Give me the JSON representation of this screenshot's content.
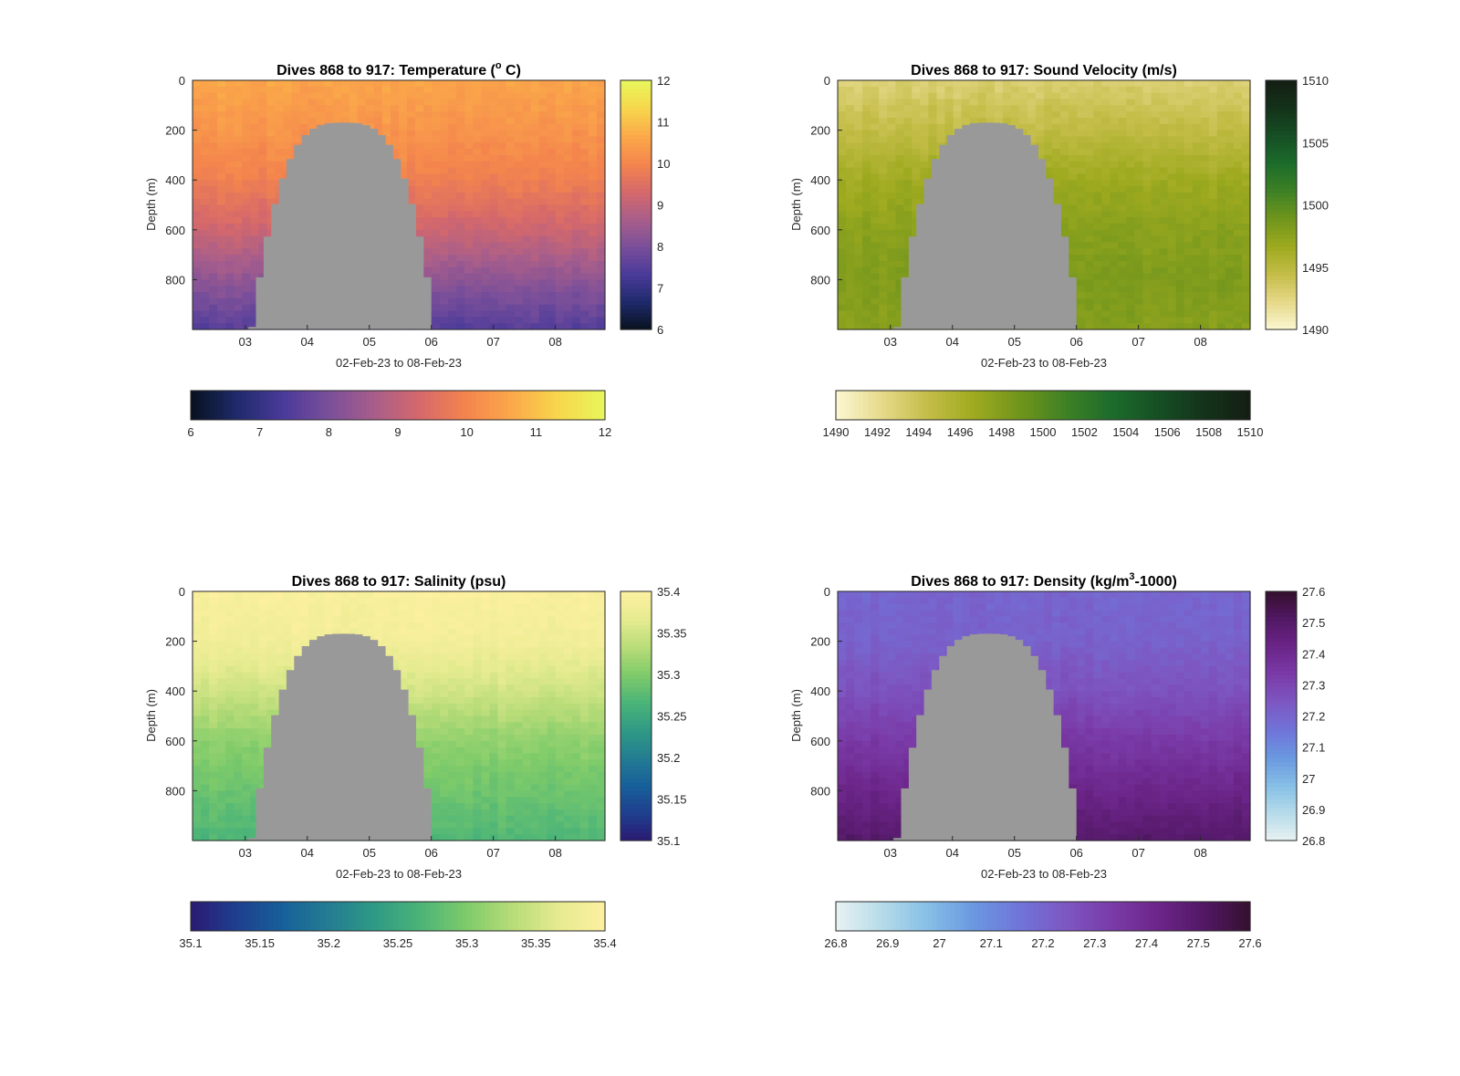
{
  "figure": {
    "background": "#ffffff"
  },
  "chart_data": [
    {
      "id": "temp",
      "type": "heatmap",
      "title_main": "Dives 868 to 917: Temperature (",
      "title_sup": "o",
      "title_tail": " C)",
      "xlabel": "02-Feb-23 to 08-Feb-23",
      "ylabel": "Depth (m)",
      "xticklabels": [
        "03",
        "04",
        "05",
        "06",
        "07",
        "08"
      ],
      "yticklabels": [
        "0",
        "200",
        "400",
        "600",
        "800"
      ],
      "yticks": [
        0,
        200,
        400,
        600,
        800
      ],
      "ylim": [
        0,
        1000
      ],
      "xlim_days": [
        2.15,
        8.8
      ],
      "xticks_days": [
        3,
        4,
        5,
        6,
        7,
        8
      ],
      "clim": [
        6,
        12
      ],
      "vcb_ticklabels": [
        "6",
        "7",
        "8",
        "9",
        "10",
        "11",
        "12"
      ],
      "hcb_ticklabels": [
        "6",
        "7",
        "8",
        "9",
        "10",
        "11",
        "12"
      ],
      "colormap": [
        "#07111e",
        "#1f2a6b",
        "#4a3a9a",
        "#7a4f9a",
        "#a95e8a",
        "#d6696a",
        "#f4854d",
        "#fba94a",
        "#f7d74c",
        "#e8f75b"
      ],
      "profile_depth": [
        0,
        200,
        400,
        600,
        800,
        1000
      ],
      "profile_values": [
        10.6,
        10.3,
        9.9,
        9.2,
        8.3,
        7.5
      ],
      "gap_days": [
        3.05,
        6.0
      ],
      "gap_color": "#999999"
    },
    {
      "id": "sv",
      "type": "heatmap",
      "title_main": "Dives 868 to 917: Sound Velocity (m/s)",
      "title_sup": "",
      "title_tail": "",
      "xlabel": "02-Feb-23 to 08-Feb-23",
      "ylabel": "Depth (m)",
      "xticklabels": [
        "03",
        "04",
        "05",
        "06",
        "07",
        "08"
      ],
      "yticklabels": [
        "0",
        "200",
        "400",
        "600",
        "800"
      ],
      "yticks": [
        0,
        200,
        400,
        600,
        800
      ],
      "ylim": [
        0,
        1000
      ],
      "xlim_days": [
        2.15,
        8.8
      ],
      "xticks_days": [
        3,
        4,
        5,
        6,
        7,
        8
      ],
      "clim": [
        1490,
        1510
      ],
      "vcb_ticklabels": [
        "1490",
        "1495",
        "1500",
        "1505",
        "1510"
      ],
      "hcb_ticklabels": [
        "1490",
        "1492",
        "1494",
        "1496",
        "1498",
        "1500",
        "1502",
        "1504",
        "1506",
        "1508",
        "1510"
      ],
      "colormap": [
        "#fcf7d2",
        "#e6d98a",
        "#c4bd48",
        "#9eaa1f",
        "#70951c",
        "#3e8125",
        "#1d6c2c",
        "#164f24",
        "#14331a",
        "#141e14"
      ],
      "profile_depth": [
        0,
        200,
        400,
        600,
        800,
        1000
      ],
      "profile_values": [
        1493.0,
        1494.6,
        1496.6,
        1497.6,
        1498.2,
        1497.8
      ],
      "gap_days": [
        3.05,
        6.0
      ],
      "gap_color": "#999999"
    },
    {
      "id": "sal",
      "type": "heatmap",
      "title_main": "Dives 868 to 917: Salinity (psu)",
      "title_sup": "",
      "title_tail": "",
      "xlabel": "02-Feb-23 to 08-Feb-23",
      "ylabel": "Depth (m)",
      "xticklabels": [
        "03",
        "04",
        "05",
        "06",
        "07",
        "08"
      ],
      "yticklabels": [
        "0",
        "200",
        "400",
        "600",
        "800"
      ],
      "yticks": [
        0,
        200,
        400,
        600,
        800
      ],
      "ylim": [
        0,
        1000
      ],
      "xlim_days": [
        2.15,
        8.8
      ],
      "xticks_days": [
        3,
        4,
        5,
        6,
        7,
        8
      ],
      "clim": [
        35.1,
        35.4
      ],
      "vcb_ticklabels": [
        "35.1",
        "35.15",
        "35.2",
        "35.25",
        "35.3",
        "35.35",
        "35.4"
      ],
      "hcb_ticklabels": [
        "35.1",
        "35.15",
        "35.2",
        "35.25",
        "35.3",
        "35.35",
        "35.4"
      ],
      "colormap": [
        "#2a1a72",
        "#1f3f8e",
        "#17609a",
        "#237d92",
        "#2f9a85",
        "#4bb478",
        "#7fcb6a",
        "#b8dc78",
        "#e6eb90",
        "#fdf0a0"
      ],
      "profile_depth": [
        0,
        200,
        400,
        600,
        800,
        1000
      ],
      "profile_values": [
        35.395,
        35.385,
        35.35,
        35.31,
        35.29,
        35.27
      ],
      "gap_days": [
        3.05,
        6.0
      ],
      "gap_color": "#999999"
    },
    {
      "id": "dens",
      "type": "heatmap",
      "title_main": "Dives 868 to 917: Density (kg/m",
      "title_sup": "3",
      "title_tail": "-1000)",
      "xlabel": "02-Feb-23 to 08-Feb-23",
      "ylabel": "Depth (m)",
      "xticklabels": [
        "03",
        "04",
        "05",
        "06",
        "07",
        "08"
      ],
      "yticklabels": [
        "0",
        "200",
        "400",
        "600",
        "800"
      ],
      "yticks": [
        0,
        200,
        400,
        600,
        800
      ],
      "ylim": [
        0,
        1000
      ],
      "xlim_days": [
        2.15,
        8.8
      ],
      "xticks_days": [
        3,
        4,
        5,
        6,
        7,
        8
      ],
      "clim": [
        26.8,
        27.6
      ],
      "vcb_ticklabels": [
        "26.8",
        "26.9",
        "27",
        "27.1",
        "27.2",
        "27.3",
        "27.4",
        "27.5",
        "27.6"
      ],
      "hcb_ticklabels": [
        "26.8",
        "26.9",
        "27",
        "27.1",
        "27.2",
        "27.3",
        "27.4",
        "27.5",
        "27.6"
      ],
      "colormap": [
        "#e8f2f2",
        "#b6dbe9",
        "#86bfe6",
        "#6a98e0",
        "#7074d9",
        "#7d57c2",
        "#7a3ba8",
        "#6c2589",
        "#521865",
        "#35102e"
      ],
      "profile_depth": [
        0,
        200,
        400,
        600,
        800,
        1000
      ],
      "profile_values": [
        27.2,
        27.21,
        27.26,
        27.34,
        27.42,
        27.5
      ],
      "gap_days": [
        3.05,
        6.0
      ],
      "gap_color": "#999999"
    }
  ]
}
